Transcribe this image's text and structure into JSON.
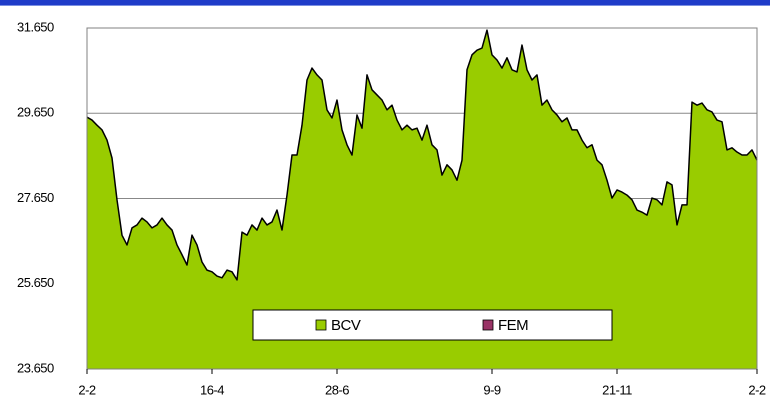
{
  "chart_data": {
    "type": "area",
    "categories": [
      "2-2",
      null,
      null,
      null,
      null,
      null,
      null,
      null,
      null,
      null,
      null,
      null,
      null,
      null,
      null,
      null,
      null,
      null,
      null,
      null,
      null,
      null,
      null,
      null,
      null,
      "16-4",
      null,
      null,
      null,
      null,
      null,
      null,
      null,
      null,
      null,
      null,
      null,
      null,
      null,
      null,
      null,
      null,
      null,
      null,
      null,
      null,
      null,
      null,
      null,
      null,
      "28-6",
      null,
      null,
      null,
      null,
      null,
      null,
      null,
      null,
      null,
      null,
      null,
      null,
      null,
      null,
      null,
      null,
      null,
      null,
      null,
      null,
      null,
      null,
      null,
      null,
      null,
      null,
      null,
      null,
      null,
      null,
      "9-9",
      null,
      null,
      null,
      null,
      null,
      null,
      null,
      null,
      null,
      null,
      null,
      null,
      null,
      null,
      null,
      null,
      null,
      null,
      null,
      null,
      null,
      null,
      null,
      null,
      "21-11",
      null,
      null,
      null,
      null,
      null,
      null,
      null,
      null,
      null,
      null,
      null,
      null,
      null,
      null,
      null,
      null,
      null,
      null,
      null,
      null,
      null,
      null,
      null,
      null,
      null,
      null,
      null,
      "2-2"
    ],
    "series": [
      {
        "name": "BCV",
        "color": "#99cc00",
        "values": [
          29560,
          29490,
          29370,
          29260,
          29020,
          28600,
          27620,
          26790,
          26560,
          26960,
          27030,
          27190,
          27100,
          26960,
          27030,
          27190,
          27030,
          26910,
          26560,
          26330,
          26090,
          26790,
          26560,
          26160,
          25970,
          25930,
          25830,
          25790,
          25970,
          25930,
          25740,
          26860,
          26790,
          27030,
          26910,
          27190,
          27030,
          27100,
          27380,
          26910,
          27730,
          28670,
          28670,
          29370,
          30430,
          30710,
          30550,
          30430,
          29730,
          29540,
          29960,
          29260,
          28910,
          28670,
          29610,
          29300,
          30550,
          30200,
          30080,
          29960,
          29730,
          29840,
          29490,
          29260,
          29370,
          29260,
          29300,
          29020,
          29370,
          28910,
          28790,
          28200,
          28440,
          28320,
          28080,
          28550,
          30670,
          31020,
          31130,
          31180,
          31600,
          31020,
          30900,
          30710,
          30950,
          30670,
          30620,
          31250,
          30670,
          30430,
          30550,
          29840,
          29960,
          29730,
          29610,
          29450,
          29540,
          29260,
          29260,
          29020,
          28840,
          28910,
          28550,
          28440,
          28080,
          27660,
          27850,
          27800,
          27730,
          27620,
          27380,
          27330,
          27260,
          27660,
          27620,
          27500,
          28040,
          27970,
          27030,
          27500,
          27500,
          29910,
          29840,
          29890,
          29730,
          29680,
          29490,
          29450,
          28790,
          28840,
          28740,
          28670,
          28670,
          28790,
          28550
        ]
      },
      {
        "name": "FEM",
        "color": "#993366"
      }
    ],
    "ylim": [
      23650,
      31650
    ],
    "yticks": [
      {
        "value": 23650,
        "label": "23.650"
      },
      {
        "value": 25650,
        "label": "25.650"
      },
      {
        "value": 27650,
        "label": "27.650"
      },
      {
        "value": 29650,
        "label": "29.650"
      },
      {
        "value": 31650,
        "label": "31.650"
      }
    ],
    "grid": true,
    "legend": "bottom-center"
  }
}
